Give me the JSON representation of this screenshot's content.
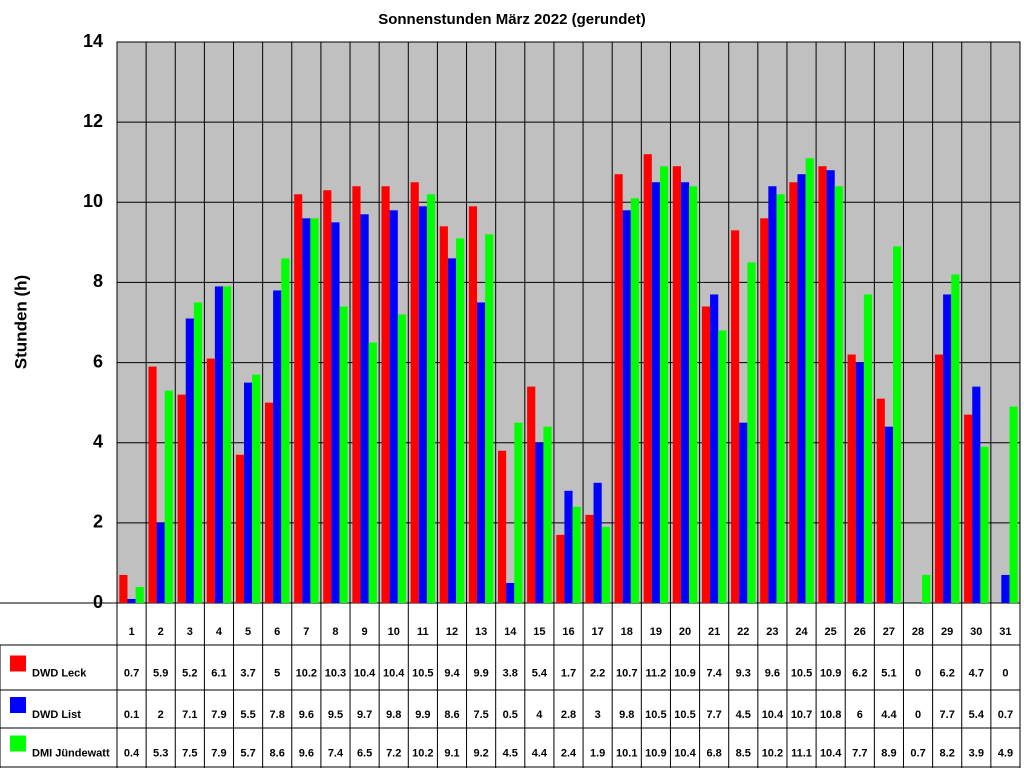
{
  "chart_data": {
    "type": "bar",
    "title": "Sonnenstunden März 2022 (gerundet)",
    "y_label": "Stunden (h)",
    "categories": [
      "1",
      "2",
      "3",
      "4",
      "5",
      "6",
      "7",
      "8",
      "9",
      "10",
      "11",
      "12",
      "13",
      "14",
      "15",
      "16",
      "17",
      "18",
      "19",
      "20",
      "21",
      "22",
      "23",
      "24",
      "25",
      "26",
      "27",
      "28",
      "29",
      "30",
      "31"
    ],
    "series": [
      {
        "name": "DWD Leck",
        "color": "#ff0000",
        "values": [
          0.7,
          5.9,
          5.2,
          6.1,
          3.7,
          5,
          10.2,
          10.3,
          10.4,
          10.4,
          10.5,
          9.4,
          9.9,
          3.8,
          5.4,
          1.7,
          2.2,
          10.7,
          11.2,
          10.9,
          7.4,
          9.3,
          9.6,
          10.5,
          10.9,
          6.2,
          5.1,
          0,
          6.2,
          4.7,
          0
        ]
      },
      {
        "name": "DWD List",
        "color": "#0000ff",
        "values": [
          0.1,
          2,
          7.1,
          7.9,
          5.5,
          7.8,
          9.6,
          9.5,
          9.7,
          9.8,
          9.9,
          8.6,
          7.5,
          0.5,
          4,
          2.8,
          3,
          9.8,
          10.5,
          10.5,
          7.7,
          4.5,
          10.4,
          10.7,
          10.8,
          6,
          4.4,
          0,
          7.7,
          5.4,
          0.7
        ]
      },
      {
        "name": "DMI Jündewatt",
        "color": "#00ff00",
        "values": [
          0.4,
          5.3,
          7.5,
          7.9,
          5.7,
          8.6,
          9.6,
          7.4,
          6.5,
          7.2,
          10.2,
          9.1,
          9.2,
          4.5,
          4.4,
          2.4,
          1.9,
          10.1,
          10.9,
          10.4,
          6.8,
          8.5,
          10.2,
          11.1,
          10.4,
          7.7,
          8.9,
          0.7,
          8.2,
          3.9,
          4.9
        ]
      }
    ],
    "ylim": [
      0,
      14
    ],
    "yticks": [
      0,
      2,
      4,
      6,
      8,
      10,
      12,
      14
    ],
    "grid": true
  }
}
